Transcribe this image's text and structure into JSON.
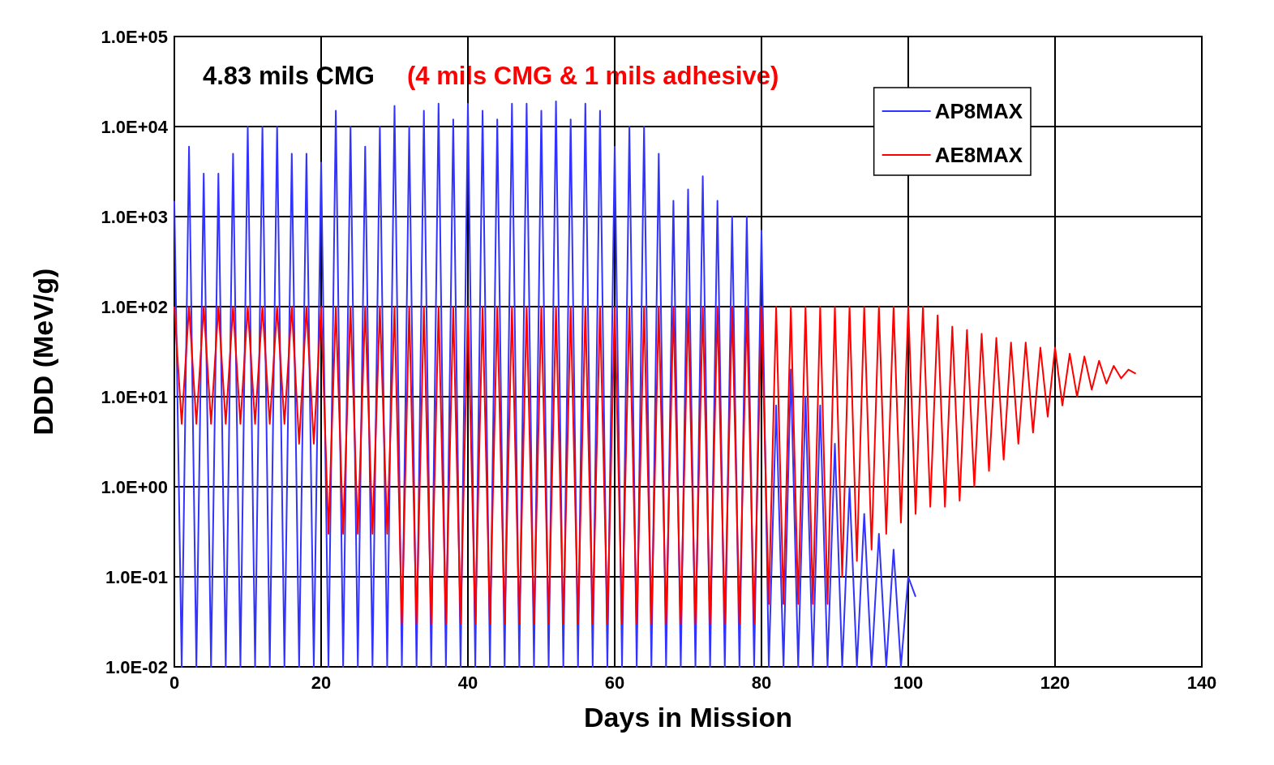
{
  "chart_data": {
    "type": "line",
    "xlabel": "Days in Mission",
    "ylabel": "DDD (MeV/g)",
    "annotations": [
      "4.83 mils CMG",
      "(4 mils CMG & 1 mils adhesive)"
    ],
    "log": "y",
    "grid": true,
    "legend": "top right",
    "marker": "none",
    "line_style": "solid",
    "xlim": [
      0,
      140
    ],
    "xticks": [
      0,
      20,
      40,
      60,
      80,
      100,
      120,
      140
    ],
    "ylim": [
      0.01,
      100000
    ],
    "yticks": [
      {
        "value": 0.01,
        "label": "1.0E-02"
      },
      {
        "value": 0.1,
        "label": "1.0E-01"
      },
      {
        "value": 1,
        "label": "1.0E+00"
      },
      {
        "value": 10,
        "label": "1.0E+01"
      },
      {
        "value": 100,
        "label": "1.0E+02"
      },
      {
        "value": 1000,
        "label": "1.0E+03"
      },
      {
        "value": 10000,
        "label": "1.0E+04"
      },
      {
        "value": 100000,
        "label": "1.0E+05"
      }
    ],
    "series": [
      {
        "name": "AP8MAX",
        "color": "#3333ff",
        "x": [
          0,
          1,
          2,
          3,
          4,
          5,
          6,
          7,
          8,
          9,
          10,
          11,
          12,
          13,
          14,
          15,
          16,
          17,
          18,
          19,
          20,
          21,
          22,
          23,
          24,
          25,
          26,
          27,
          28,
          29,
          30,
          31,
          32,
          33,
          34,
          35,
          36,
          37,
          38,
          39,
          40,
          41,
          42,
          43,
          44,
          45,
          46,
          47,
          48,
          49,
          50,
          51,
          52,
          53,
          54,
          55,
          56,
          57,
          58,
          59,
          60,
          61,
          62,
          63,
          64,
          65,
          66,
          67,
          68,
          69,
          70,
          71,
          72,
          73,
          74,
          75,
          76,
          77,
          78,
          79,
          80,
          81,
          82,
          83,
          84,
          85,
          86,
          87,
          88,
          89,
          90,
          91,
          92,
          93,
          94,
          95,
          96,
          97,
          98,
          99,
          100,
          101
        ],
        "values": [
          1500,
          0.01,
          6000,
          0.01,
          3000,
          0.01,
          3000,
          0.01,
          5000,
          0.01,
          10000,
          0.01,
          10000,
          0.01,
          10000,
          0.01,
          5000,
          0.01,
          5000,
          0.01,
          4000,
          0.01,
          15000,
          0.01,
          10000,
          0.01,
          6000,
          0.01,
          10000,
          0.01,
          17000,
          0.01,
          10000,
          0.01,
          15000,
          0.01,
          18000,
          0.01,
          12000,
          0.01,
          18000,
          0.01,
          15000,
          0.01,
          12000,
          0.01,
          18000,
          0.01,
          18000,
          0.01,
          15000,
          0.01,
          19000,
          0.01,
          12000,
          0.01,
          18000,
          0.01,
          15000,
          0.01,
          6000,
          0.01,
          10000,
          0.01,
          10000,
          0.01,
          5000,
          0.01,
          1500,
          0.01,
          2000,
          0.01,
          2800,
          0.01,
          1500,
          0.01,
          1000,
          0.01,
          1000,
          0.01,
          700,
          0.01,
          8,
          0.01,
          20,
          0.01,
          10,
          0.01,
          8,
          0.01,
          3,
          0.01,
          1,
          0.01,
          0.5,
          0.01,
          0.3,
          0.01,
          0.2,
          0.01,
          0.1,
          0.06
        ]
      },
      {
        "name": "AE8MAX",
        "color": "#ff0000",
        "x": [
          0,
          1,
          2,
          3,
          4,
          5,
          6,
          7,
          8,
          9,
          10,
          11,
          12,
          13,
          14,
          15,
          16,
          17,
          18,
          19,
          20,
          21,
          22,
          23,
          24,
          25,
          26,
          27,
          28,
          29,
          30,
          31,
          32,
          33,
          34,
          35,
          36,
          37,
          38,
          39,
          40,
          41,
          42,
          43,
          44,
          45,
          46,
          47,
          48,
          49,
          50,
          51,
          52,
          53,
          54,
          55,
          56,
          57,
          58,
          59,
          60,
          61,
          62,
          63,
          64,
          65,
          66,
          67,
          68,
          69,
          70,
          71,
          72,
          73,
          74,
          75,
          76,
          77,
          78,
          79,
          80,
          81,
          82,
          83,
          84,
          85,
          86,
          87,
          88,
          89,
          90,
          91,
          92,
          93,
          94,
          95,
          96,
          97,
          98,
          99,
          100,
          101,
          102,
          103,
          104,
          105,
          106,
          107,
          108,
          109,
          110,
          111,
          112,
          113,
          114,
          115,
          116,
          117,
          118,
          119,
          120,
          121,
          122,
          123,
          124,
          125,
          126,
          127,
          128,
          129,
          130,
          131
        ],
        "values": [
          100,
          5,
          100,
          5,
          100,
          5,
          100,
          5,
          100,
          5,
          100,
          5,
          100,
          5,
          100,
          5,
          100,
          3,
          100,
          3,
          100,
          0.3,
          100,
          0.3,
          100,
          0.3,
          100,
          0.3,
          100,
          0.3,
          100,
          0.03,
          100,
          0.03,
          100,
          0.03,
          100,
          0.03,
          100,
          0.03,
          100,
          0.03,
          100,
          0.03,
          100,
          0.03,
          100,
          0.03,
          100,
          0.03,
          100,
          0.03,
          100,
          0.03,
          100,
          0.03,
          100,
          0.03,
          100,
          0.03,
          100,
          0.03,
          100,
          0.03,
          100,
          0.03,
          100,
          0.03,
          100,
          0.03,
          100,
          0.03,
          100,
          0.03,
          100,
          0.03,
          100,
          0.03,
          100,
          0.03,
          100,
          0.05,
          100,
          0.05,
          100,
          0.05,
          100,
          0.05,
          100,
          0.05,
          100,
          0.1,
          100,
          0.15,
          100,
          0.2,
          100,
          0.3,
          100,
          0.4,
          100,
          0.5,
          100,
          0.6,
          80,
          0.6,
          60,
          0.7,
          55,
          1,
          50,
          1.5,
          45,
          2,
          40,
          3,
          40,
          4,
          35,
          6,
          35,
          8,
          30,
          10,
          28,
          12,
          25,
          14,
          22,
          16,
          20,
          18
        ]
      }
    ]
  }
}
